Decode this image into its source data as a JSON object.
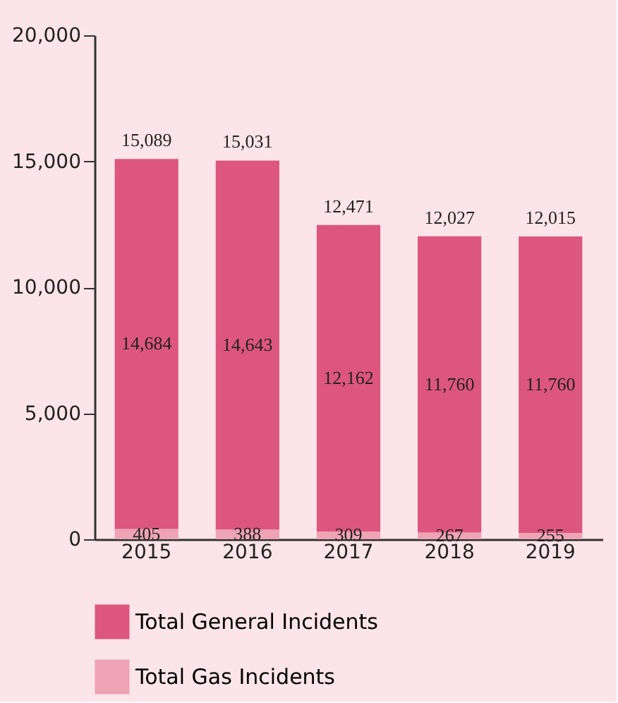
{
  "chart_data": {
    "type": "bar",
    "stacked": true,
    "categories": [
      "2015",
      "2016",
      "2017",
      "2018",
      "2019"
    ],
    "series": [
      {
        "name": "Total Gas Incidents",
        "color": "#eea3b6",
        "values": [
          405,
          388,
          309,
          267,
          255
        ],
        "value_labels": [
          "405",
          "388",
          "309",
          "267",
          "255"
        ]
      },
      {
        "name": "Total General Incidents",
        "color": "#dc5680",
        "values": [
          14684,
          14643,
          12162,
          11760,
          11760
        ],
        "value_labels": [
          "14,684",
          "14,643",
          "12,162",
          "11,760",
          "11,760"
        ]
      }
    ],
    "totals": [
      "15,089",
      "15,031",
      "12,471",
      "12,027",
      "12,015"
    ],
    "ylim": [
      0,
      20000
    ],
    "yticks": [
      0,
      {
        "value": 5000,
        "label": "5,000"
      },
      {
        "value": 10000,
        "label": "10,000"
      },
      {
        "value": 15000,
        "label": "15,000"
      },
      {
        "value": 20000,
        "label": "20,000"
      }
    ],
    "grid": false,
    "legend": "bottom"
  }
}
